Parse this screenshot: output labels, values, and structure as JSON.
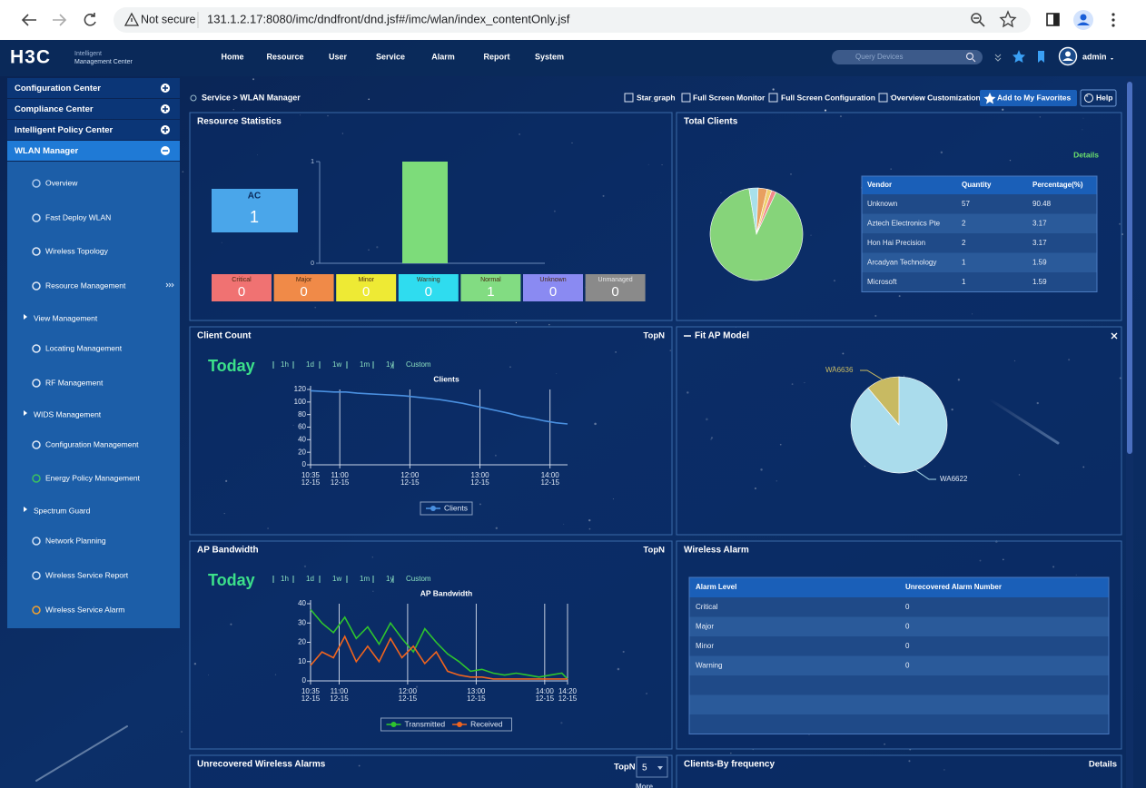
{
  "browser": {
    "security": "Not secure",
    "url": "131.1.2.17:8080/imc/dndfront/dnd.jsf#/imc/wlan/index_contentOnly.jsf"
  },
  "header": {
    "logo": "H3C",
    "product": [
      "Intelligent",
      "Management Center"
    ],
    "nav": [
      "Home",
      "Resource",
      "User",
      "Service",
      "Alarm",
      "Report",
      "System"
    ],
    "search_placeholder": "Query Devices",
    "user": "admin"
  },
  "sidebar": {
    "sections": [
      "Configuration Center",
      "Compliance Center",
      "Intelligent Policy Center",
      "WLAN Manager"
    ],
    "items": [
      {
        "label": "Overview"
      },
      {
        "label": "Fast Deploy WLAN"
      },
      {
        "label": "Wireless Topology"
      },
      {
        "label": "Resource Management"
      },
      {
        "label": "View Management",
        "expandable": true
      },
      {
        "label": "Locating Management"
      },
      {
        "label": "RF Management"
      },
      {
        "label": "WIDS Management",
        "expandable": true
      },
      {
        "label": "Configuration Management"
      },
      {
        "label": "Energy Policy Management"
      },
      {
        "label": "Spectrum Guard",
        "expandable": true
      },
      {
        "label": "Network Planning"
      },
      {
        "label": "Wireless Service Report"
      },
      {
        "label": "Wireless Service Alarm"
      }
    ]
  },
  "breadcrumb": "Service > WLAN Manager",
  "toolbar": [
    "Star graph",
    "Full Screen Monitor",
    "Full Screen Configuration",
    "Overview Customization",
    "Add to My Favorites",
    "Help"
  ],
  "panels": {
    "resource_statistics": {
      "title": "Resource Statistics",
      "ac": {
        "label": "AC",
        "value": 1
      },
      "chart": {
        "type": "bar",
        "values": [
          1
        ],
        "color": "#7ddc7a",
        "ylim": [
          0,
          1
        ],
        "yticks": [
          0,
          1
        ]
      },
      "status": [
        {
          "label": "Critical",
          "value": 0,
          "color": "#f07272"
        },
        {
          "label": "Major",
          "value": 0,
          "color": "#f08a48"
        },
        {
          "label": "Minor",
          "value": 0,
          "color": "#eeea34"
        },
        {
          "label": "Warning",
          "value": 0,
          "color": "#2fdcef"
        },
        {
          "label": "Normal",
          "value": 1,
          "color": "#82dc82"
        },
        {
          "label": "Unknown",
          "value": 0,
          "color": "#8a8af2"
        },
        {
          "label": "Unmanaged",
          "value": 0,
          "color": "#8a8a8a"
        }
      ]
    },
    "total_clients": {
      "title": "Total Clients",
      "details": "Details",
      "chart": {
        "type": "pie",
        "colors": [
          "#86d47a",
          "#a8e0ea",
          "#e8a060",
          "#f0d070",
          "#f08a8a"
        ]
      },
      "table": {
        "columns": [
          "Vendor",
          "Quantity",
          "Percentage(%)"
        ],
        "rows": [
          [
            "Unknown",
            57,
            90.48
          ],
          [
            "Aztech Electronics Pte",
            2,
            3.17
          ],
          [
            "Hon Hai Precision",
            2,
            3.17
          ],
          [
            "Arcadyan Technology",
            1,
            1.59
          ],
          [
            "Microsoft",
            1,
            1.59
          ]
        ]
      }
    },
    "client_count": {
      "title": "Client Count",
      "topn": "TopN",
      "period": "Today",
      "ranges": [
        "1h",
        "1d",
        "1w",
        "1m",
        "1y",
        "Custom"
      ],
      "chart": {
        "type": "line",
        "title": "Clients",
        "x": [
          "10:35",
          "10:45",
          "10:55",
          "11:05",
          "11:15",
          "11:25",
          "11:35",
          "11:45",
          "11:55",
          "12:05",
          "12:15",
          "12:25",
          "12:35",
          "12:45",
          "12:55",
          "13:05",
          "13:15",
          "13:25",
          "13:35",
          "13:45",
          "13:55",
          "14:05",
          "14:15"
        ],
        "xlim": [
          "10:35",
          "14:15"
        ],
        "xticks": [
          {
            "value": "10:35",
            "label": "10:35",
            "date": "12-15"
          },
          {
            "value": "11:00",
            "label": "11:00",
            "date": "12-15"
          },
          {
            "value": "12:00",
            "label": "12:00",
            "date": "12-15"
          },
          {
            "value": "13:00",
            "label": "13:00",
            "date": "12-15"
          },
          {
            "value": "14:00",
            "label": "14:00",
            "date": "12-15"
          }
        ],
        "ylim": [
          0,
          120
        ],
        "yticks": [
          0,
          20,
          40,
          60,
          80,
          100,
          120
        ],
        "series": [
          {
            "name": "Clients",
            "color": "#4a90e0",
            "values": [
              118,
              117,
              116,
              116,
              114,
              113,
              112,
              111,
              110,
              108,
              106,
              104,
              101,
              98,
              94,
              90,
              86,
              82,
              77,
              74,
              70,
              67,
              65
            ]
          }
        ]
      }
    },
    "fit_ap_model": {
      "title": "Fit AP Model",
      "chart": {
        "type": "pie",
        "categories": [
          "WA6636",
          "WA6622"
        ],
        "values": [
          1,
          8
        ],
        "colors": [
          "#c8ba62",
          "#aadcec"
        ]
      }
    },
    "ap_bandwidth": {
      "title": "AP Bandwidth",
      "topn": "TopN",
      "period": "Today",
      "ranges": [
        "1h",
        "1d",
        "1w",
        "1m",
        "1y",
        "Custom"
      ],
      "chart": {
        "type": "line",
        "title": "AP Bandwidth",
        "x": [
          "10:35",
          "10:45",
          "10:55",
          "11:05",
          "11:15",
          "11:25",
          "11:35",
          "11:45",
          "11:55",
          "12:05",
          "12:15",
          "12:25",
          "12:35",
          "12:45",
          "12:55",
          "13:05",
          "13:15",
          "13:25",
          "13:35",
          "13:45",
          "13:55",
          "14:05",
          "14:15",
          "14:20"
        ],
        "xlim": [
          "10:35",
          "14:20"
        ],
        "xticks": [
          {
            "value": "10:35",
            "label": "10:35",
            "date": "12-15"
          },
          {
            "value": "11:00",
            "label": "11:00",
            "date": "12-15"
          },
          {
            "value": "12:00",
            "label": "12:00",
            "date": "12-15"
          },
          {
            "value": "13:00",
            "label": "13:00",
            "date": "12-15"
          },
          {
            "value": "14:00",
            "label": "14:00",
            "date": "12-15"
          },
          {
            "value": "14:20",
            "label": "14:20",
            "date": "12-15"
          }
        ],
        "ylim": [
          0,
          40
        ],
        "yticks": [
          0,
          10,
          20,
          30,
          40
        ],
        "series": [
          {
            "name": "Transmitted",
            "color": "#2ec42e",
            "values": [
              37,
              30,
              25,
              33,
              22,
              28,
              19,
              30,
              22,
              15,
              27,
              20,
              14,
              10,
              5,
              6,
              4,
              3,
              4,
              3,
              2,
              3,
              4,
              1
            ]
          },
          {
            "name": "Received",
            "color": "#f0641e",
            "values": [
              8,
              15,
              12,
              23,
              10,
              18,
              10,
              22,
              12,
              18,
              9,
              15,
              5,
              3,
              2,
              2,
              1,
              1,
              1,
              1,
              1,
              1,
              1,
              1
            ]
          }
        ]
      }
    },
    "wireless_alarm": {
      "title": "Wireless Alarm",
      "table": {
        "columns": [
          "Alarm Level",
          "Unrecovered Alarm Number"
        ],
        "rows": [
          [
            "Critical",
            0
          ],
          [
            "Major",
            0
          ],
          [
            "Minor",
            0
          ],
          [
            "Warning",
            0
          ]
        ]
      }
    },
    "unrecovered_alarms": {
      "title": "Unrecovered Wireless Alarms",
      "topn": "TopN",
      "select": "5",
      "more": "More"
    },
    "clients_by_frequency": {
      "title": "Clients-By frequency",
      "details": "Details"
    }
  }
}
